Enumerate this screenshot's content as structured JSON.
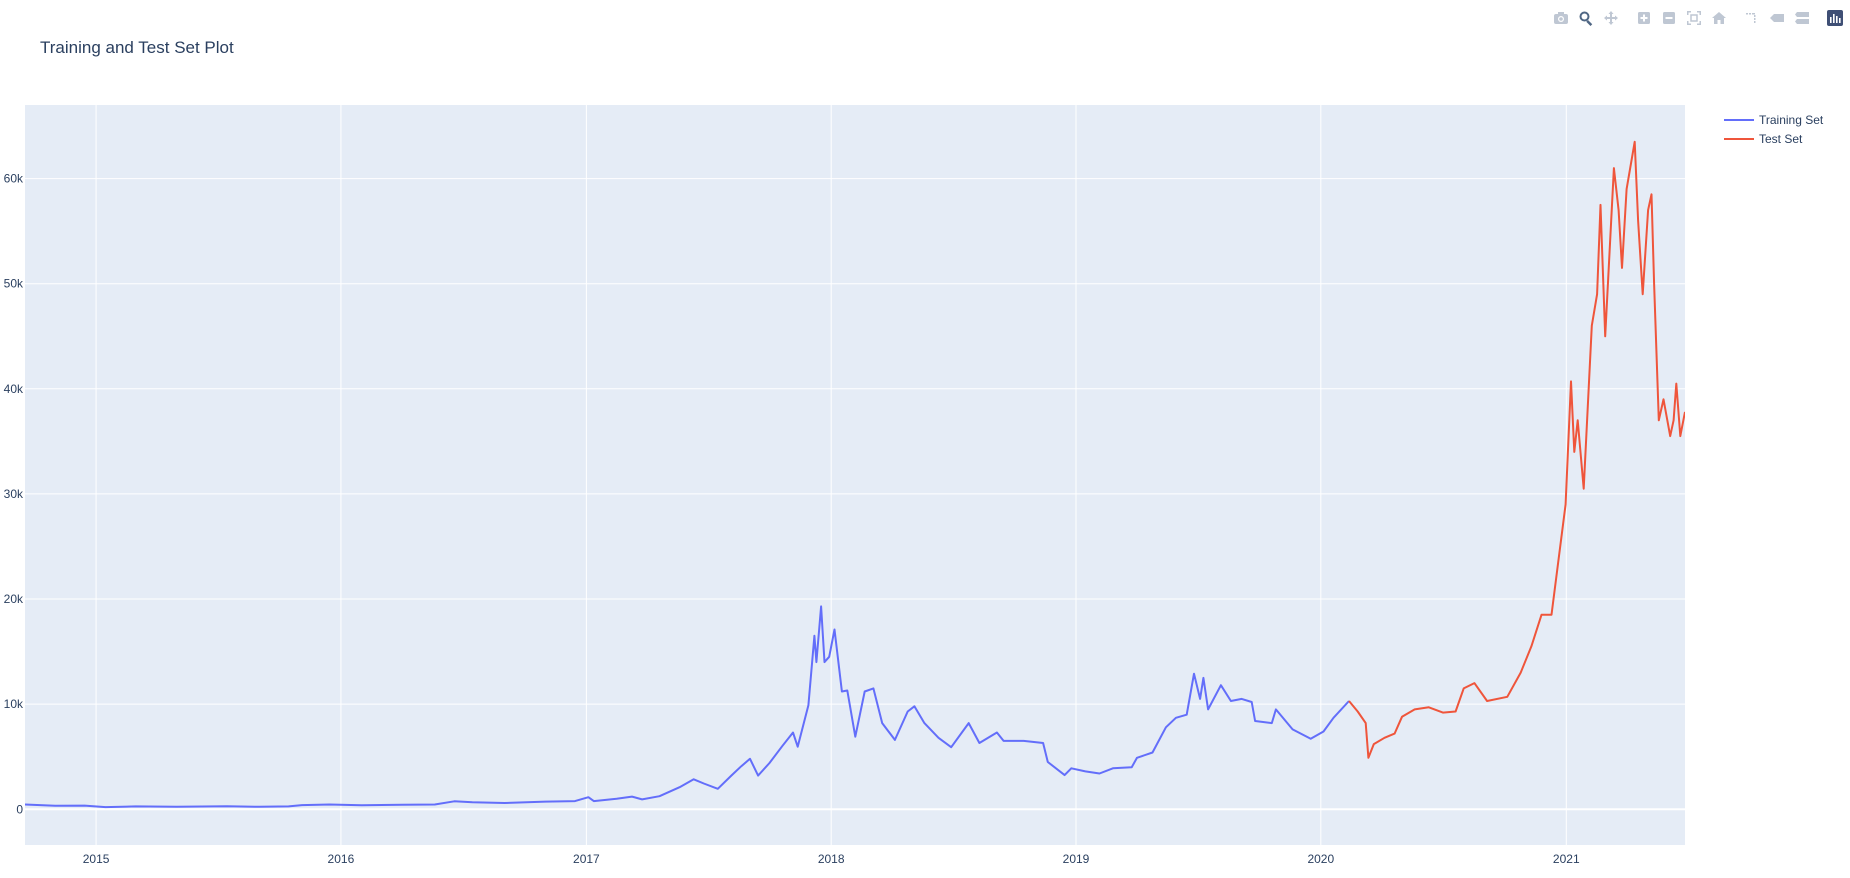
{
  "title": "Training and Test Set Plot",
  "modebar": {
    "buttons": [
      "camera-icon",
      "zoom-icon",
      "pan-icon",
      "zoom-in-icon",
      "zoom-out-icon",
      "autoscale-icon",
      "reset-axes-icon",
      "spike-lines-icon",
      "hover-closest-icon",
      "hover-compare-icon",
      "plotly-logo-icon"
    ]
  },
  "colors": {
    "training": "#636efa",
    "test": "#ef553b",
    "plot_bg": "#e5ecf6",
    "grid": "#ffffff"
  },
  "chart_data": {
    "type": "line",
    "title": "Training and Test Set Plot",
    "xlabel": "",
    "ylabel": "",
    "xlim": [
      "2014-09-17",
      "2021-06-27"
    ],
    "ylim": [
      -3400,
      67000
    ],
    "x_ticks": [
      "2015",
      "2016",
      "2017",
      "2018",
      "2019",
      "2020",
      "2021"
    ],
    "y_ticks": [
      0,
      10000,
      20000,
      30000,
      40000,
      50000,
      60000
    ],
    "y_tick_labels": [
      "0",
      "10k",
      "20k",
      "30k",
      "40k",
      "50k",
      "60k"
    ],
    "legend_position": "top-right",
    "grid": true,
    "series": [
      {
        "name": "Training Set",
        "color": "#636efa",
        "points": [
          [
            "2014-09-17",
            457
          ],
          [
            "2014-11-01",
            330
          ],
          [
            "2014-12-15",
            350
          ],
          [
            "2015-01-15",
            210
          ],
          [
            "2015-03-01",
            270
          ],
          [
            "2015-05-01",
            235
          ],
          [
            "2015-07-15",
            285
          ],
          [
            "2015-09-01",
            230
          ],
          [
            "2015-10-15",
            270
          ],
          [
            "2015-11-04",
            400
          ],
          [
            "2015-12-15",
            450
          ],
          [
            "2016-02-01",
            380
          ],
          [
            "2016-04-01",
            420
          ],
          [
            "2016-05-20",
            450
          ],
          [
            "2016-06-18",
            760
          ],
          [
            "2016-07-15",
            660
          ],
          [
            "2016-09-01",
            600
          ],
          [
            "2016-11-01",
            730
          ],
          [
            "2016-12-15",
            780
          ],
          [
            "2017-01-04",
            1150
          ],
          [
            "2017-01-12",
            780
          ],
          [
            "2017-02-15",
            1000
          ],
          [
            "2017-03-10",
            1200
          ],
          [
            "2017-03-25",
            940
          ],
          [
            "2017-04-20",
            1240
          ],
          [
            "2017-05-20",
            2100
          ],
          [
            "2017-06-10",
            2850
          ],
          [
            "2017-06-25",
            2450
          ],
          [
            "2017-07-16",
            1950
          ],
          [
            "2017-08-05",
            3200
          ],
          [
            "2017-08-20",
            4100
          ],
          [
            "2017-09-02",
            4800
          ],
          [
            "2017-09-14",
            3200
          ],
          [
            "2017-10-01",
            4400
          ],
          [
            "2017-10-20",
            6000
          ],
          [
            "2017-11-05",
            7300
          ],
          [
            "2017-11-12",
            5950
          ],
          [
            "2017-11-28",
            9900
          ],
          [
            "2017-12-07",
            16500
          ],
          [
            "2017-12-10",
            14000
          ],
          [
            "2017-12-17",
            19300
          ],
          [
            "2017-12-22",
            14000
          ],
          [
            "2017-12-29",
            14500
          ],
          [
            "2018-01-06",
            17100
          ],
          [
            "2018-01-17",
            11200
          ],
          [
            "2018-01-25",
            11300
          ],
          [
            "2018-02-06",
            6900
          ],
          [
            "2018-02-20",
            11200
          ],
          [
            "2018-03-05",
            11500
          ],
          [
            "2018-03-18",
            8200
          ],
          [
            "2018-04-06",
            6600
          ],
          [
            "2018-04-25",
            9300
          ],
          [
            "2018-05-05",
            9800
          ],
          [
            "2018-05-20",
            8200
          ],
          [
            "2018-06-10",
            6800
          ],
          [
            "2018-06-29",
            5900
          ],
          [
            "2018-07-25",
            8200
          ],
          [
            "2018-08-10",
            6300
          ],
          [
            "2018-09-05",
            7300
          ],
          [
            "2018-09-15",
            6500
          ],
          [
            "2018-10-15",
            6500
          ],
          [
            "2018-11-13",
            6300
          ],
          [
            "2018-11-20",
            4500
          ],
          [
            "2018-12-15",
            3250
          ],
          [
            "2018-12-25",
            3900
          ],
          [
            "2019-01-15",
            3600
          ],
          [
            "2019-02-05",
            3400
          ],
          [
            "2019-02-25",
            3900
          ],
          [
            "2019-03-25",
            4000
          ],
          [
            "2019-04-02",
            4900
          ],
          [
            "2019-04-25",
            5400
          ],
          [
            "2019-05-15",
            7800
          ],
          [
            "2019-05-30",
            8700
          ],
          [
            "2019-06-15",
            9000
          ],
          [
            "2019-06-26",
            12900
          ],
          [
            "2019-07-05",
            10500
          ],
          [
            "2019-07-10",
            12500
          ],
          [
            "2019-07-17",
            9500
          ],
          [
            "2019-08-05",
            11800
          ],
          [
            "2019-08-20",
            10300
          ],
          [
            "2019-09-05",
            10500
          ],
          [
            "2019-09-20",
            10200
          ],
          [
            "2019-09-25",
            8400
          ],
          [
            "2019-10-20",
            8200
          ],
          [
            "2019-10-26",
            9500
          ],
          [
            "2019-11-20",
            7600
          ],
          [
            "2019-12-17",
            6700
          ],
          [
            "2020-01-05",
            7400
          ],
          [
            "2020-01-20",
            8700
          ],
          [
            "2020-02-12",
            10300
          ]
        ]
      },
      {
        "name": "Test Set",
        "color": "#ef553b",
        "points": [
          [
            "2020-02-12",
            10300
          ],
          [
            "2020-02-25",
            9300
          ],
          [
            "2020-03-08",
            8200
          ],
          [
            "2020-03-12",
            4900
          ],
          [
            "2020-03-20",
            6200
          ],
          [
            "2020-04-05",
            6800
          ],
          [
            "2020-04-20",
            7200
          ],
          [
            "2020-05-01",
            8800
          ],
          [
            "2020-05-20",
            9500
          ],
          [
            "2020-06-10",
            9700
          ],
          [
            "2020-07-01",
            9200
          ],
          [
            "2020-07-20",
            9300
          ],
          [
            "2020-08-01",
            11500
          ],
          [
            "2020-08-17",
            12000
          ],
          [
            "2020-09-05",
            10300
          ],
          [
            "2020-10-05",
            10700
          ],
          [
            "2020-10-25",
            13000
          ],
          [
            "2020-11-10",
            15500
          ],
          [
            "2020-11-25",
            18500
          ],
          [
            "2020-12-10",
            18500
          ],
          [
            "2020-12-20",
            23500
          ],
          [
            "2020-12-31",
            29000
          ],
          [
            "2021-01-08",
            40700
          ],
          [
            "2021-01-13",
            34000
          ],
          [
            "2021-01-18",
            37000
          ],
          [
            "2021-01-27",
            30500
          ],
          [
            "2021-02-08",
            46000
          ],
          [
            "2021-02-16",
            49000
          ],
          [
            "2021-02-21",
            57500
          ],
          [
            "2021-02-28",
            45000
          ],
          [
            "2021-03-13",
            61000
          ],
          [
            "2021-03-20",
            57000
          ],
          [
            "2021-03-25",
            51500
          ],
          [
            "2021-04-01",
            59000
          ],
          [
            "2021-04-13",
            63500
          ],
          [
            "2021-04-18",
            56000
          ],
          [
            "2021-04-25",
            49000
          ],
          [
            "2021-05-03",
            57000
          ],
          [
            "2021-05-08",
            58500
          ],
          [
            "2021-05-12",
            50000
          ],
          [
            "2021-05-19",
            37000
          ],
          [
            "2021-05-26",
            39000
          ],
          [
            "2021-06-05",
            35500
          ],
          [
            "2021-06-10",
            37000
          ],
          [
            "2021-06-14",
            40500
          ],
          [
            "2021-06-20",
            35500
          ],
          [
            "2021-06-27",
            37800
          ]
        ]
      }
    ]
  }
}
